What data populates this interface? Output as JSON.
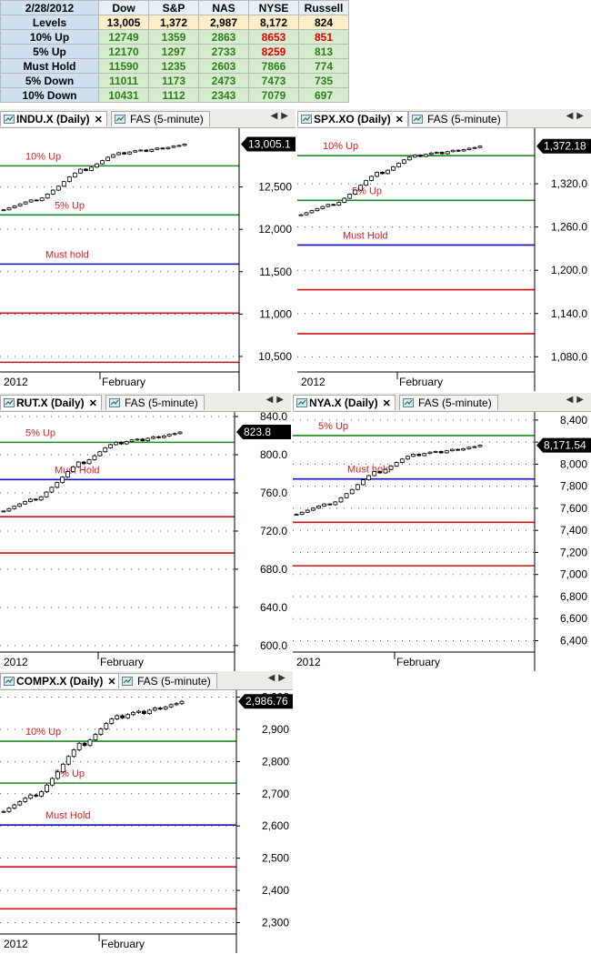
{
  "table": {
    "date": "2/28/2012",
    "columns": [
      "Dow",
      "S&P",
      "NAS",
      "NYSE",
      "Russell"
    ],
    "rows": [
      {
        "label": "Levels",
        "values": [
          "13,005",
          "1,372",
          "2,987",
          "8,172",
          "824"
        ]
      },
      {
        "label": "10% Up",
        "values": [
          "12749",
          "1359",
          "2863",
          "8653",
          "851"
        ]
      },
      {
        "label": "5% Up",
        "values": [
          "12170",
          "1297",
          "2733",
          "8259",
          "813"
        ]
      },
      {
        "label": "Must Hold",
        "values": [
          "11590",
          "1235",
          "2603",
          "7866",
          "774"
        ]
      },
      {
        "label": "5% Down",
        "values": [
          "11011",
          "1173",
          "2473",
          "7473",
          "735"
        ]
      },
      {
        "label": "10% Down",
        "values": [
          "10431",
          "1112",
          "2343",
          "7079",
          "697"
        ]
      }
    ],
    "colors": {
      "label_bg": "#cfe0f1",
      "level_bg": "#fbeec9",
      "value_bg": "#d7ecce",
      "green_text": "#2e7d1e",
      "red_text": "#e00000"
    }
  },
  "chart_data": [
    {
      "type": "candlestick",
      "symbol_tab": "INDU.X (Daily)",
      "secondary_tab": "FAS (5-minute)",
      "price_label": "13,005.1",
      "x_labels": [
        "2012",
        "February"
      ],
      "y_ticks": [
        "12,500",
        "12,000",
        "11,500",
        "11,000",
        "10,500"
      ],
      "y_tick_values": [
        12500,
        12000,
        11500,
        11000,
        10500
      ],
      "ylim": [
        10360,
        13150
      ],
      "last": 13005.1,
      "lines": [
        {
          "label": "10% Up",
          "value": 12749,
          "color": "green"
        },
        {
          "label": "5% Up",
          "value": 12170,
          "color": "green"
        },
        {
          "label": "Must hold",
          "value": 11590,
          "color": "blue"
        },
        {
          "label": "",
          "value": 11011,
          "color": "red"
        },
        {
          "label": "",
          "value": 10431,
          "color": "red"
        }
      ],
      "start": 12230
    },
    {
      "type": "candlestick",
      "symbol_tab": "SPX.XO (Daily)",
      "secondary_tab": "FAS (5-minute)",
      "price_label": "1,372.18",
      "x_labels": [
        "2012",
        "February"
      ],
      "y_ticks": [
        "1,320.0",
        "1,260.0",
        "1,200.0",
        "1,140.0",
        "1,080.0"
      ],
      "y_tick_values": [
        1320,
        1260,
        1200,
        1140,
        1080
      ],
      "ylim": [
        1064,
        1392
      ],
      "last": 1372.18,
      "lines": [
        {
          "label": "10% Up",
          "value": 1359,
          "color": "green"
        },
        {
          "label": "5% Up",
          "value": 1297,
          "color": "green"
        },
        {
          "label": "Must Hold",
          "value": 1235,
          "color": "blue"
        },
        {
          "label": "",
          "value": 1173,
          "color": "red"
        },
        {
          "label": "",
          "value": 1112,
          "color": "red"
        }
      ],
      "start": 1277
    },
    {
      "type": "candlestick",
      "symbol_tab": "RUT.X (Daily)",
      "secondary_tab": "FAS (5-minute)",
      "price_label": "823.8",
      "x_labels": [
        "2012",
        "February"
      ],
      "y_ticks": [
        "840.0",
        "800.0",
        "760.0",
        "720.0",
        "680.0",
        "640.0",
        "600.0"
      ],
      "y_tick_values": [
        840,
        800,
        760,
        720,
        680,
        640,
        600
      ],
      "ylim": [
        597,
        841
      ],
      "last": 823.8,
      "lines": [
        {
          "label": "5% Up",
          "value": 813,
          "color": "green"
        },
        {
          "label": "Must Hold",
          "value": 774,
          "color": "blue"
        },
        {
          "label": "",
          "value": 735,
          "color": "red"
        },
        {
          "label": "",
          "value": 697,
          "color": "red"
        }
      ],
      "start": 741
    },
    {
      "type": "candlestick",
      "symbol_tab": "NYA.X (Daily)",
      "secondary_tab": "FAS (5-minute)",
      "price_label": "8,171.54",
      "x_labels": [
        "2012",
        "February"
      ],
      "y_ticks": [
        "8,400",
        "8,200",
        "8,000",
        "7,800",
        "7,600",
        "7,400",
        "7,200",
        "7,000",
        "6,800",
        "6,600",
        "6,400"
      ],
      "y_tick_values": [
        8400,
        8200,
        8000,
        7800,
        7600,
        7400,
        7200,
        7000,
        6800,
        6600,
        6400
      ],
      "ylim": [
        6330,
        8440
      ],
      "last": 8171.54,
      "lines": [
        {
          "label": "5% Up",
          "value": 8259,
          "color": "green"
        },
        {
          "label": "Must hold",
          "value": 7866,
          "color": "blue"
        },
        {
          "label": "",
          "value": 7473,
          "color": "red"
        },
        {
          "label": "",
          "value": 7079,
          "color": "red"
        }
      ],
      "start": 7545
    },
    {
      "type": "candlestick",
      "symbol_tab": "COMPX.X (Daily)",
      "secondary_tab": "FAS (5-minute)",
      "price_label": "2,986.76",
      "x_labels": [
        "2012",
        "February"
      ],
      "y_ticks": [
        "3,000",
        "2,900",
        "2,800",
        "2,700",
        "2,600",
        "2,500",
        "2,400",
        "2,300"
      ],
      "y_tick_values": [
        3000,
        2900,
        2800,
        2700,
        2600,
        2500,
        2400,
        2300
      ],
      "ylim": [
        2276,
        3010
      ],
      "last": 2986.76,
      "lines": [
        {
          "label": "10% Up",
          "value": 2863,
          "color": "green"
        },
        {
          "label": "5% Up",
          "value": 2733,
          "color": "green"
        },
        {
          "label": "Must Hold",
          "value": 2603,
          "color": "blue"
        },
        {
          "label": "",
          "value": 2473,
          "color": "red"
        },
        {
          "label": "",
          "value": 2343,
          "color": "red"
        }
      ],
      "start": 2645
    }
  ],
  "line_colors": {
    "green": "#1e8a1e",
    "blue": "#1010c0",
    "red": "#c81414",
    "label": "#d42020"
  }
}
